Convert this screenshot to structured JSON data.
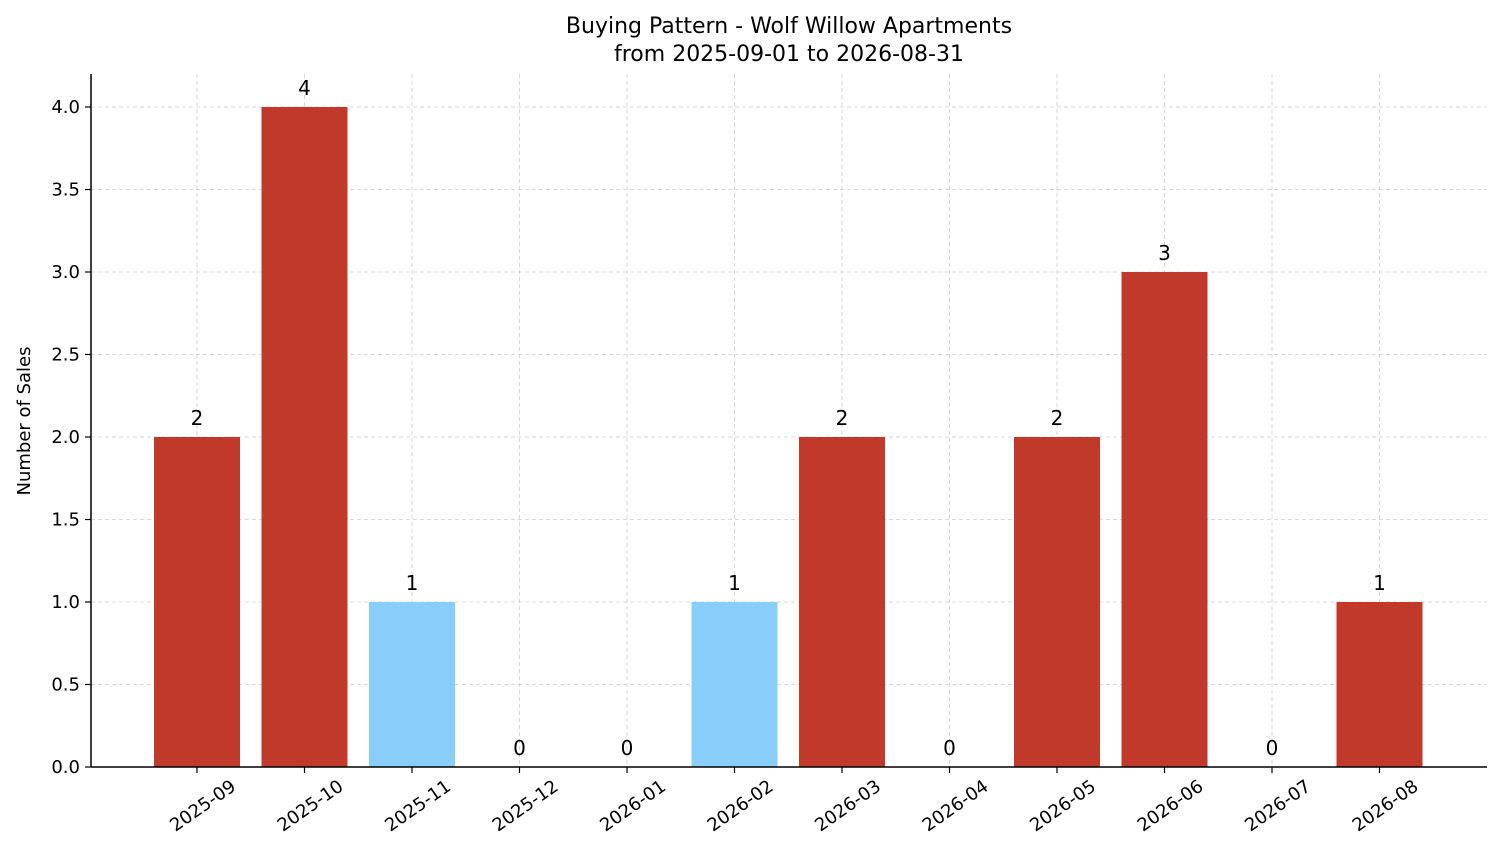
{
  "chart_data": {
    "type": "bar",
    "title_line1": "Buying Pattern - Wolf Willow Apartments",
    "title_line2": "from 2025-09-01 to 2026-08-31",
    "xlabel": "",
    "ylabel": "Number of Sales",
    "categories": [
      "2025-09",
      "2025-10",
      "2025-11",
      "2025-12",
      "2026-01",
      "2026-02",
      "2026-03",
      "2026-04",
      "2026-05",
      "2026-06",
      "2026-07",
      "2026-08"
    ],
    "values": [
      2,
      4,
      1,
      0,
      0,
      1,
      2,
      0,
      2,
      3,
      0,
      1
    ],
    "bar_colors": [
      "#c0392b",
      "#c0392b",
      "#87cefa",
      "#c0392b",
      "#c0392b",
      "#87cefa",
      "#c0392b",
      "#c0392b",
      "#c0392b",
      "#c0392b",
      "#c0392b",
      "#c0392b"
    ],
    "ylim": [
      0,
      4.2
    ],
    "yticks": [
      "0.0",
      "0.5",
      "1.0",
      "1.5",
      "2.0",
      "2.5",
      "3.0",
      "3.5",
      "4.0"
    ],
    "grid": true,
    "legend": "none"
  }
}
